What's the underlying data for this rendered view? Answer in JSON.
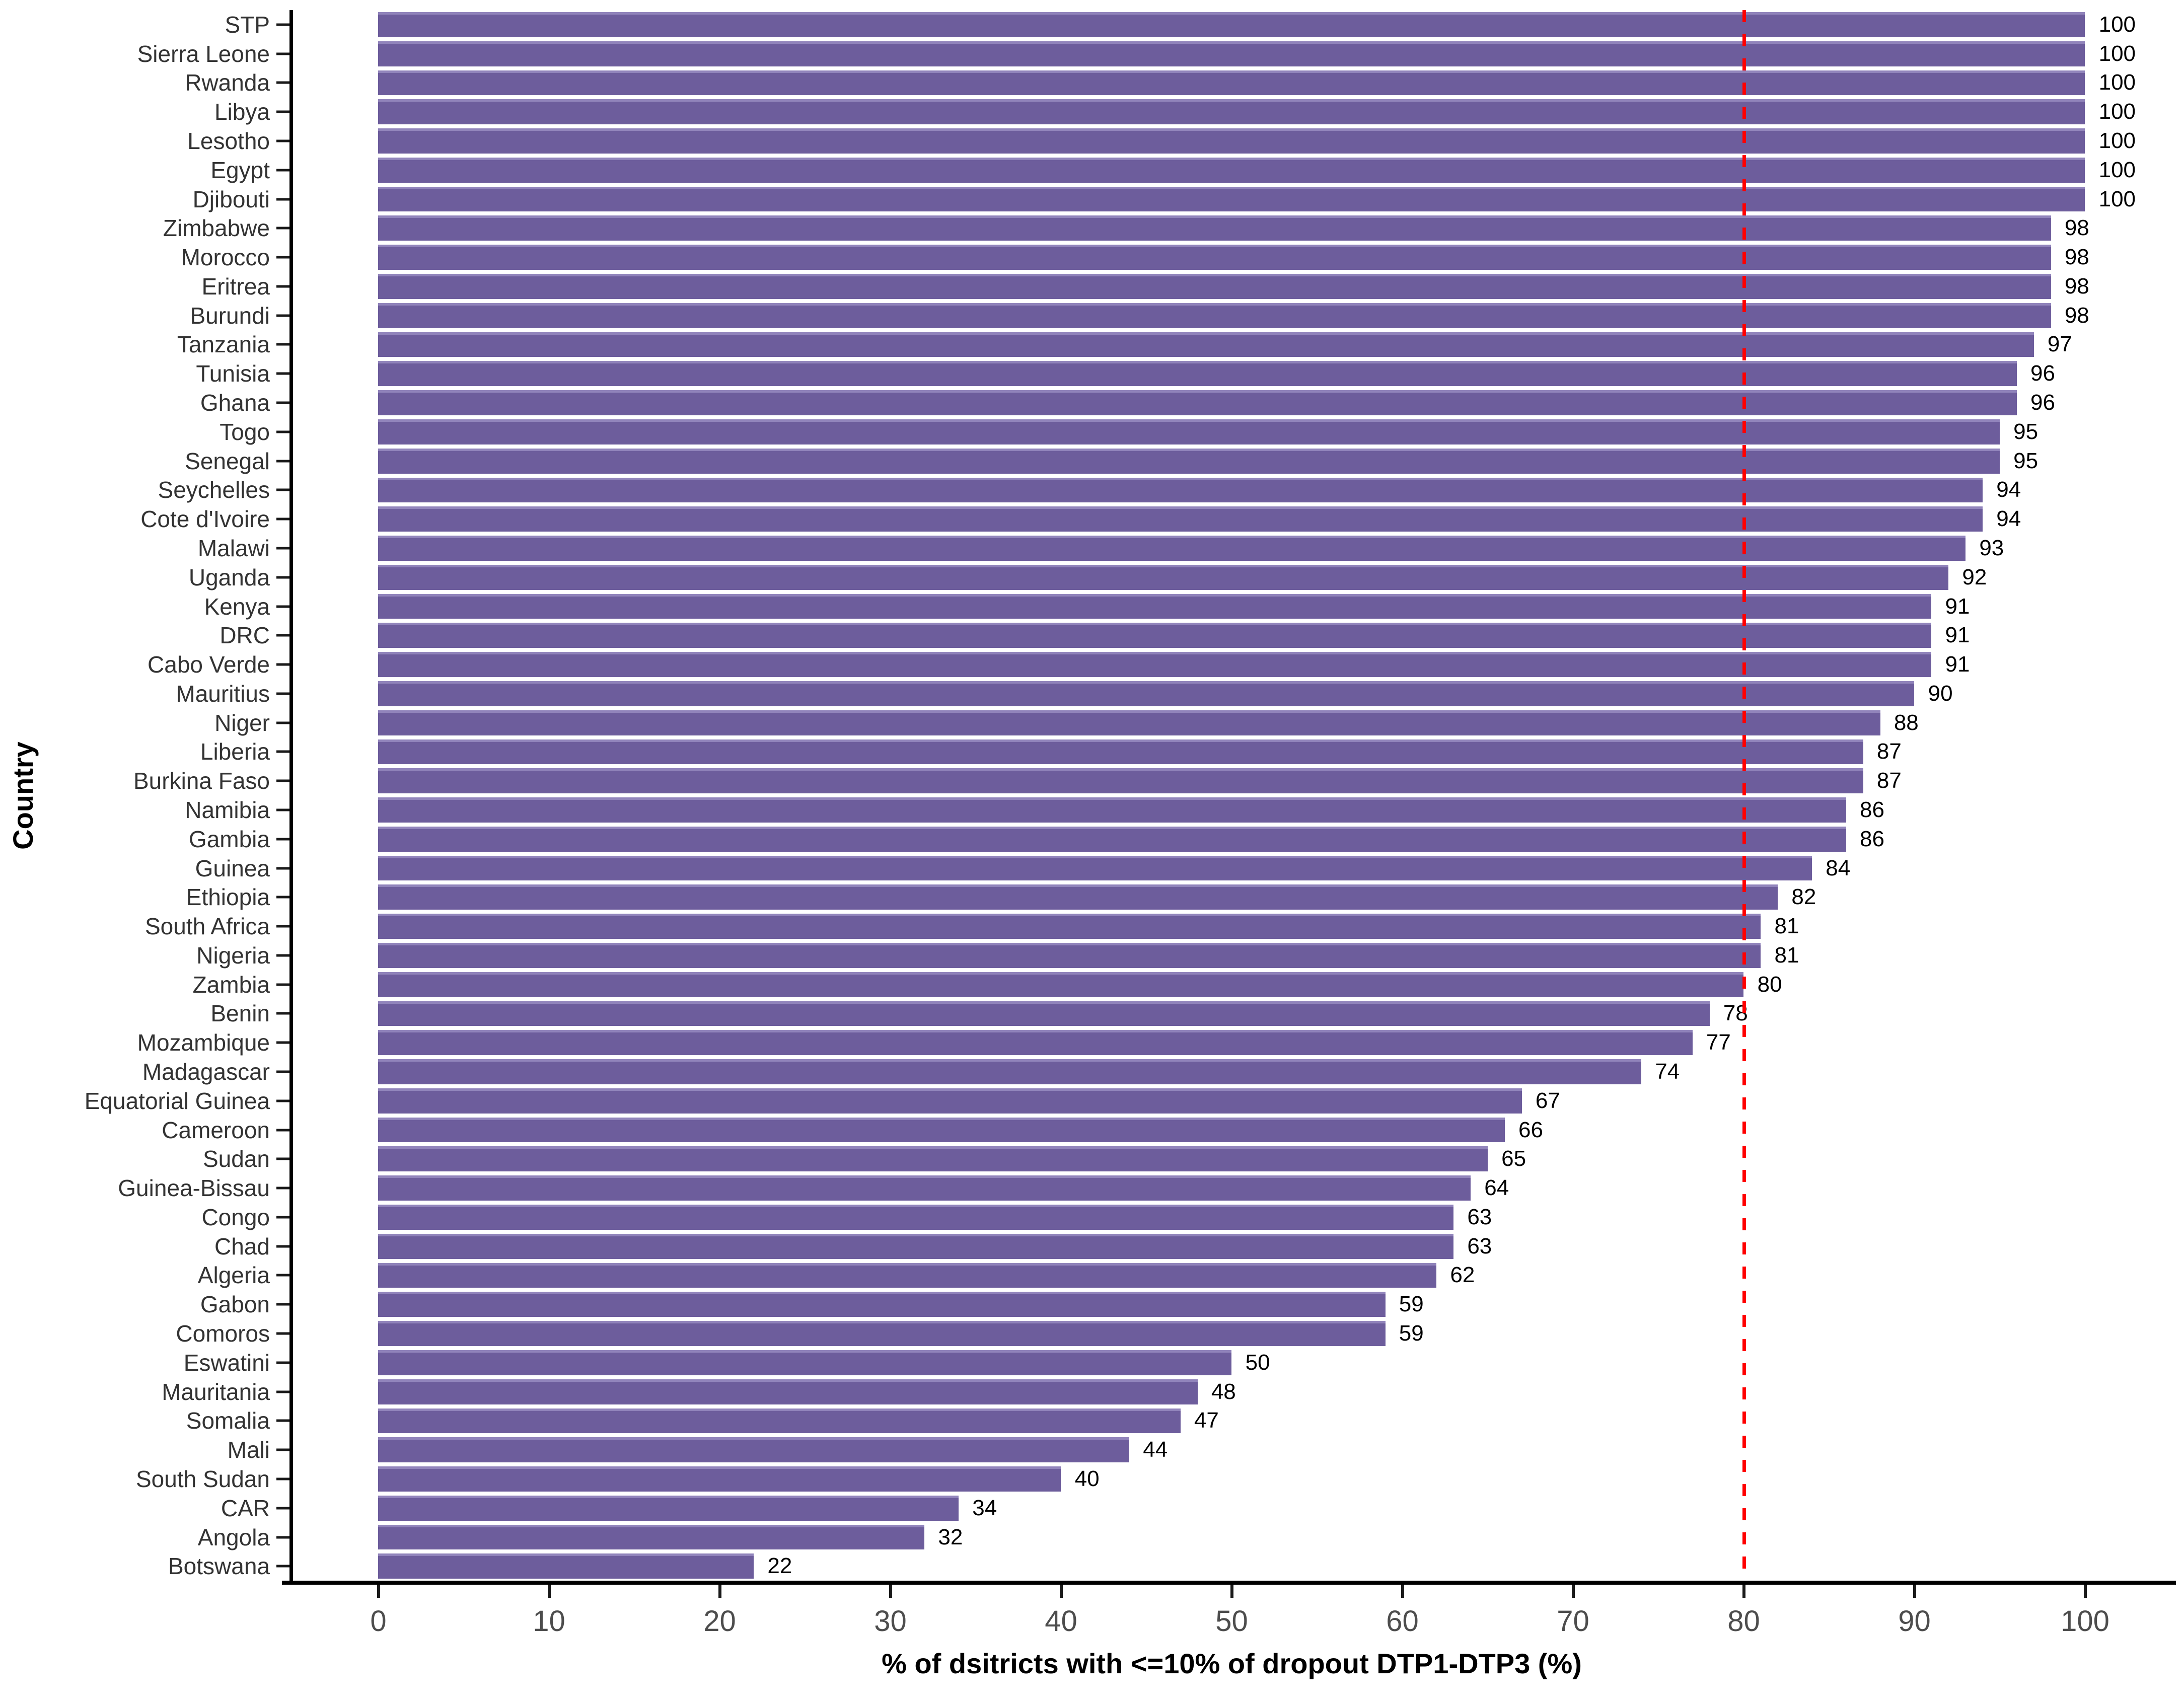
{
  "chart_data": {
    "type": "bar",
    "orientation": "horizontal",
    "title": "",
    "xlabel": "% of dsitricts with <=10% of dropout DTP1-DTP3 (%)",
    "ylabel": "Country",
    "xlim": [
      -5,
      105
    ],
    "xticks": [
      0,
      10,
      20,
      30,
      40,
      50,
      60,
      70,
      80,
      90,
      100
    ],
    "grid": false,
    "legend": "none",
    "bar_color": "#6d5d9c",
    "bar_top_edge_color": "#9184bb",
    "reference_line": {
      "x": 80,
      "color": "#ff0000",
      "style": "dashed"
    },
    "categories": [
      "STP",
      "Sierra Leone",
      "Rwanda",
      "Libya",
      "Lesotho",
      "Egypt",
      "Djibouti",
      "Zimbabwe",
      "Morocco",
      "Eritrea",
      "Burundi",
      "Tanzania",
      "Tunisia",
      "Ghana",
      "Togo",
      "Senegal",
      "Seychelles",
      "Cote d'Ivoire",
      "Malawi",
      "Uganda",
      "Kenya",
      "DRC",
      "Cabo Verde",
      "Mauritius",
      "Niger",
      "Liberia",
      "Burkina Faso",
      "Namibia",
      "Gambia",
      "Guinea",
      "Ethiopia",
      "South Africa",
      "Nigeria",
      "Zambia",
      "Benin",
      "Mozambique",
      "Madagascar",
      "Equatorial Guinea",
      "Cameroon",
      "Sudan",
      "Guinea-Bissau",
      "Congo",
      "Chad",
      "Algeria",
      "Gabon",
      "Comoros",
      "Eswatini",
      "Mauritania",
      "Somalia",
      "Mali",
      "South Sudan",
      "CAR",
      "Angola",
      "Botswana"
    ],
    "values": [
      100,
      100,
      100,
      100,
      100,
      100,
      100,
      98,
      98,
      98,
      98,
      97,
      96,
      96,
      95,
      95,
      94,
      94,
      93,
      92,
      91,
      91,
      91,
      90,
      88,
      87,
      87,
      86,
      86,
      84,
      82,
      81,
      81,
      80,
      78,
      77,
      74,
      67,
      66,
      65,
      64,
      63,
      63,
      62,
      59,
      59,
      50,
      48,
      47,
      44,
      40,
      34,
      32,
      22
    ]
  }
}
